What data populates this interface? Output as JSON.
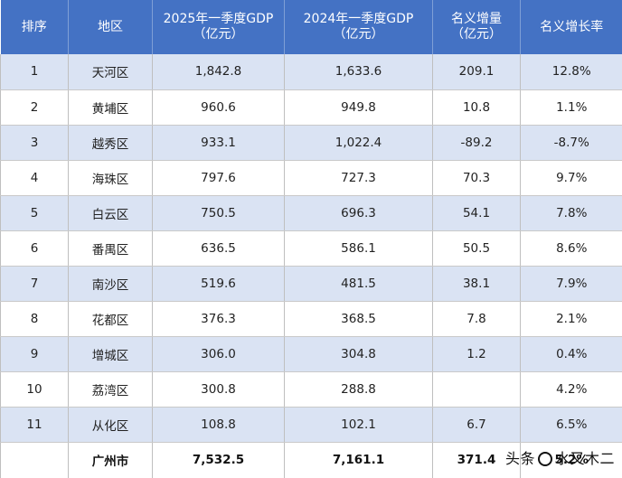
{
  "table": {
    "headers": [
      "排序",
      "地区",
      "2025年一季度GDP\n（亿元）",
      "2024年一季度GDP\n（亿元）",
      "名义增量\n（亿元）",
      "名义增长率"
    ],
    "rows": [
      [
        "1",
        "天河区",
        "1,842.8",
        "1,633.6",
        "209.1",
        "12.8%"
      ],
      [
        "2",
        "黄埔区",
        "960.6",
        "949.8",
        "10.8",
        "1.1%"
      ],
      [
        "3",
        "越秀区",
        "933.1",
        "1,022.4",
        "-89.2",
        "-8.7%"
      ],
      [
        "4",
        "海珠区",
        "797.6",
        "727.3",
        "70.3",
        "9.7%"
      ],
      [
        "5",
        "白云区",
        "750.5",
        "696.3",
        "54.1",
        "7.8%"
      ],
      [
        "6",
        "番禺区",
        "636.5",
        "586.1",
        "50.5",
        "8.6%"
      ],
      [
        "7",
        "南沙区",
        "519.6",
        "481.5",
        "38.1",
        "7.9%"
      ],
      [
        "8",
        "花都区",
        "376.3",
        "368.5",
        "7.8",
        "2.1%"
      ],
      [
        "9",
        "增城区",
        "306.0",
        "304.8",
        "1.2",
        "0.4%"
      ],
      [
        "10",
        "荔湾区",
        "300.8",
        "288.8",
        "",
        "4.2%"
      ],
      [
        "11",
        "从化区",
        "108.8",
        "102.1",
        "6.7",
        "6.5%"
      ]
    ],
    "total": [
      "",
      "广州市",
      "7,532.5",
      "7,161.1",
      "371.4",
      "5.2%"
    ]
  },
  "watermark": {
    "prefix": "头条",
    "name": "水又木二"
  },
  "colors": {
    "header_bg": "#4472c4",
    "stripe_bg": "#dae3f3"
  }
}
